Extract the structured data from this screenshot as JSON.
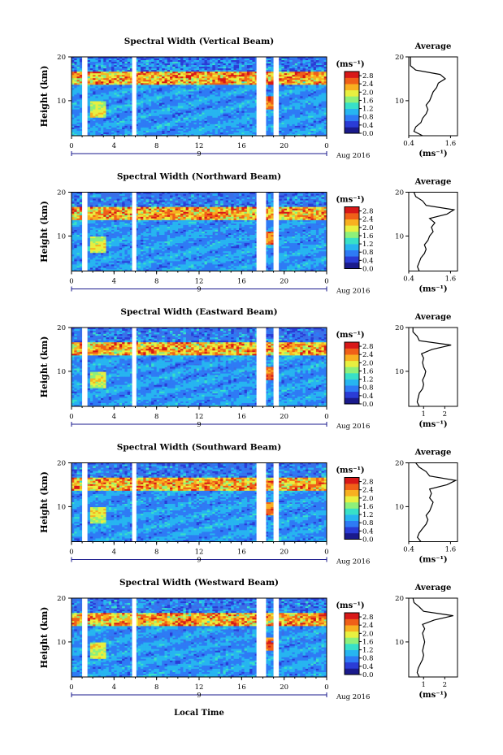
{
  "chart_data": {
    "type": "heatmap",
    "xlabel": "Local Time",
    "date_label": "Aug 2016",
    "day_label": "9",
    "ylabel": "Height (km)",
    "x_ticks": [
      "0",
      "4",
      "8",
      "12",
      "16",
      "20",
      "0"
    ],
    "xlim": [
      0,
      24
    ],
    "y_ticks": [
      "10",
      "20"
    ],
    "ylim": [
      2,
      20
    ],
    "colorbar": {
      "unit": "(ms⁻¹)",
      "ticks": [
        "0.0",
        "0.4",
        "0.8",
        "1.2",
        "1.6",
        "2.0",
        "2.4",
        "2.8"
      ],
      "range": [
        0,
        3.0
      ],
      "colors": [
        "#1a1a8c",
        "#2a3cd6",
        "#2e7bf5",
        "#27b5f0",
        "#38e0c8",
        "#8ef07a",
        "#e8f040",
        "#f8b020",
        "#f06018",
        "#d81818"
      ]
    },
    "data_gaps_hours": [
      [
        1.0,
        1.5
      ],
      [
        5.7,
        6.1
      ],
      [
        17.4,
        18.3
      ],
      [
        19.0,
        19.5
      ]
    ],
    "panels": [
      {
        "title": "Spectral Width (Vertical Beam)",
        "avg_title": "Average",
        "avg_xunit": "(ms⁻¹)",
        "avg_xticks": [
          "0.4",
          "1.6"
        ],
        "avg_xlim": [
          0.4,
          1.8
        ],
        "avg_profile": {
          "height": [
            2,
            3,
            4,
            5,
            6,
            7,
            8,
            9,
            10,
            11,
            12,
            13,
            14,
            15,
            16,
            17,
            18,
            19,
            20
          ],
          "width": [
            0.8,
            0.55,
            0.6,
            0.75,
            0.8,
            0.9,
            0.95,
            0.9,
            1.0,
            1.05,
            1.1,
            1.2,
            1.25,
            1.45,
            1.3,
            0.6,
            0.45,
            0.45,
            0.45
          ]
        }
      },
      {
        "title": "Spectral Width (Northward Beam)",
        "avg_title": "Average",
        "avg_xunit": "(ms⁻¹)",
        "avg_xticks": [
          "0.4",
          "1.6"
        ],
        "avg_xlim": [
          0.4,
          1.8
        ],
        "avg_profile": {
          "height": [
            2,
            3,
            4,
            5,
            6,
            7,
            8,
            9,
            10,
            11,
            12,
            13,
            14,
            15,
            16,
            17,
            18,
            19,
            20
          ],
          "width": [
            0.7,
            0.65,
            0.7,
            0.75,
            0.85,
            0.9,
            0.85,
            0.95,
            1.0,
            1.1,
            1.05,
            1.15,
            1.0,
            1.5,
            1.7,
            0.9,
            0.8,
            0.6,
            0.55
          ]
        }
      },
      {
        "title": "Spectral Width (Eastward Beam)",
        "avg_title": "Average",
        "avg_xunit": "(ms⁻¹)",
        "avg_xticks": [
          "1",
          "2"
        ],
        "avg_xlim": [
          0.3,
          2.6
        ],
        "avg_profile": {
          "height": [
            2,
            3,
            4,
            5,
            6,
            7,
            8,
            9,
            10,
            11,
            12,
            13,
            14,
            15,
            16,
            17,
            18,
            19,
            20
          ],
          "width": [
            0.8,
            0.7,
            0.75,
            0.8,
            0.95,
            1.0,
            0.95,
            1.05,
            1.1,
            1.0,
            0.95,
            1.0,
            0.9,
            1.4,
            2.3,
            0.8,
            0.7,
            0.5,
            0.5
          ]
        }
      },
      {
        "title": "Spectral Width (Southward Beam)",
        "avg_title": "Average",
        "avg_xunit": "(ms⁻¹)",
        "avg_xticks": [
          "0.4",
          "1.6"
        ],
        "avg_xlim": [
          0.4,
          1.8
        ],
        "avg_profile": {
          "height": [
            2,
            3,
            4,
            5,
            6,
            7,
            8,
            9,
            10,
            11,
            12,
            13,
            14,
            15,
            16,
            17,
            18,
            19,
            20
          ],
          "width": [
            0.75,
            0.65,
            0.7,
            0.8,
            0.9,
            0.95,
            0.9,
            1.0,
            1.05,
            1.1,
            1.0,
            1.05,
            1.0,
            1.5,
            1.75,
            1.0,
            0.9,
            0.7,
            0.6
          ]
        }
      },
      {
        "title": "Spectral Width (Westward Beam)",
        "avg_title": "Average",
        "avg_xunit": "(ms⁻¹)",
        "avg_xticks": [
          "1",
          "2"
        ],
        "avg_xlim": [
          0.3,
          2.6
        ],
        "avg_profile": {
          "height": [
            2,
            3,
            4,
            5,
            6,
            7,
            8,
            9,
            10,
            11,
            12,
            13,
            14,
            15,
            16,
            17,
            18,
            19,
            20
          ],
          "width": [
            0.8,
            0.7,
            0.75,
            0.85,
            0.95,
            1.0,
            0.95,
            1.0,
            1.05,
            1.0,
            0.95,
            1.05,
            0.95,
            1.5,
            2.4,
            1.0,
            0.8,
            0.55,
            0.5
          ]
        }
      }
    ]
  }
}
